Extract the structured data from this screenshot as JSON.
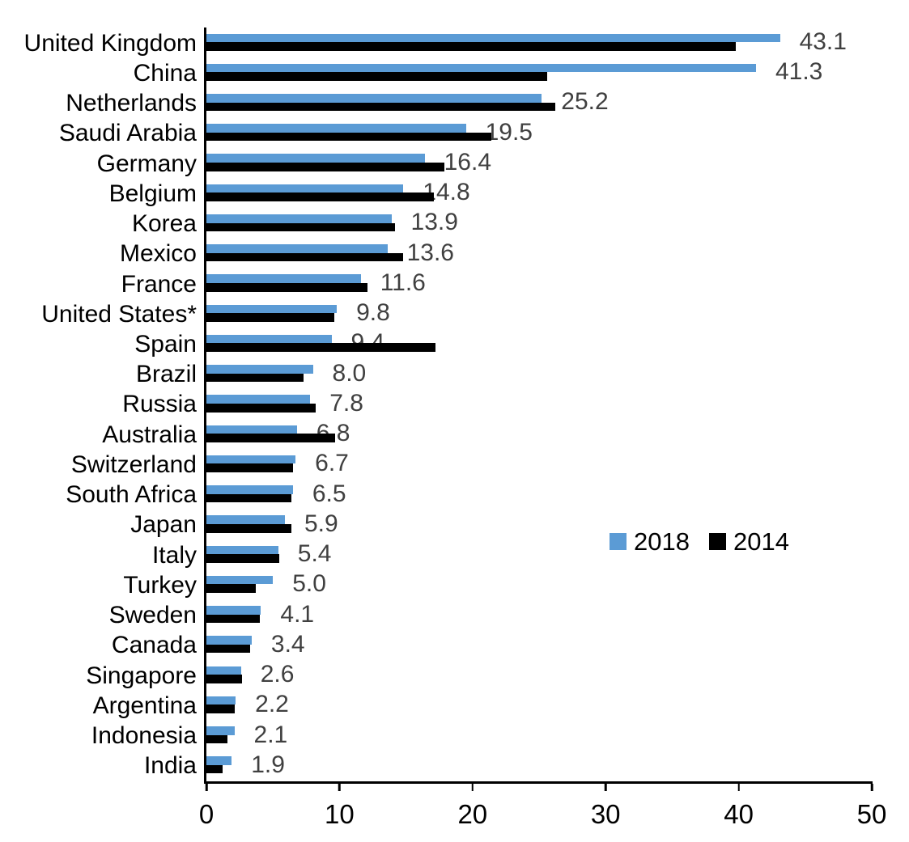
{
  "chart_data": {
    "type": "bar",
    "orientation": "horizontal",
    "title": "",
    "xlabel": "",
    "ylabel": "",
    "xlim": [
      0,
      50
    ],
    "x_ticks": [
      0,
      10,
      20,
      30,
      40,
      50
    ],
    "grid": false,
    "legend_position": "middle-right",
    "value_label_color": "#404040",
    "categories": [
      "United Kingdom",
      "China",
      "Netherlands",
      "Saudi Arabia",
      "Germany",
      "Belgium",
      "Korea",
      "Mexico",
      "France",
      "United States*",
      "Spain",
      "Brazil",
      "Russia",
      "Australia",
      "Switzerland",
      "South Africa",
      "Japan",
      "Italy",
      "Turkey",
      "Sweden",
      "Canada",
      "Singapore",
      "Argentina",
      "Indonesia",
      "India"
    ],
    "series": [
      {
        "name": "2018",
        "color": "#5B9BD5",
        "values": [
          43.1,
          41.3,
          25.2,
          19.5,
          16.4,
          14.8,
          13.9,
          13.6,
          11.6,
          9.8,
          9.4,
          8.0,
          7.8,
          6.8,
          6.7,
          6.5,
          5.9,
          5.4,
          5.0,
          4.1,
          3.4,
          2.6,
          2.2,
          2.1,
          1.9
        ]
      },
      {
        "name": "2014",
        "color": "#000000",
        "values": [
          39.8,
          25.6,
          26.2,
          21.4,
          17.9,
          17.1,
          14.2,
          14.8,
          12.1,
          9.6,
          17.2,
          7.3,
          8.2,
          9.7,
          6.5,
          6.4,
          6.4,
          5.5,
          3.7,
          4.0,
          3.3,
          2.7,
          2.1,
          1.6,
          1.2
        ]
      }
    ],
    "data_labels_series": "2018"
  }
}
